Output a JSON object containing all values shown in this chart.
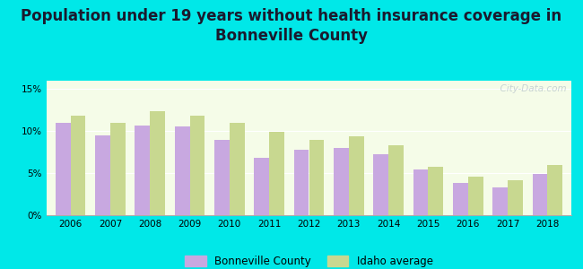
{
  "title": "Population under 19 years without health insurance coverage in\nBonneville County",
  "years": [
    2006,
    2007,
    2008,
    2009,
    2010,
    2011,
    2012,
    2013,
    2014,
    2015,
    2016,
    2017,
    2018
  ],
  "bonneville": [
    11.0,
    9.5,
    10.7,
    10.6,
    9.0,
    6.8,
    7.8,
    8.0,
    7.3,
    5.4,
    3.8,
    3.3,
    4.9
  ],
  "idaho": [
    11.8,
    11.0,
    12.4,
    11.8,
    11.0,
    9.9,
    9.0,
    9.4,
    8.3,
    5.8,
    4.6,
    4.2,
    6.0
  ],
  "bonneville_color": "#c8a8e0",
  "idaho_color": "#c8d890",
  "background_outer": "#00e8e8",
  "background_plot_top": "#f5fce8",
  "background_plot_bottom": "#ffffff",
  "ylim": [
    0,
    16
  ],
  "yticks": [
    0,
    5,
    10,
    15
  ],
  "ytick_labels": [
    "0%",
    "5%",
    "10%",
    "15%"
  ],
  "bar_width": 0.38,
  "title_fontsize": 12,
  "watermark": "  City-Data.com",
  "legend_label1": "Bonneville County",
  "legend_label2": "Idaho average"
}
